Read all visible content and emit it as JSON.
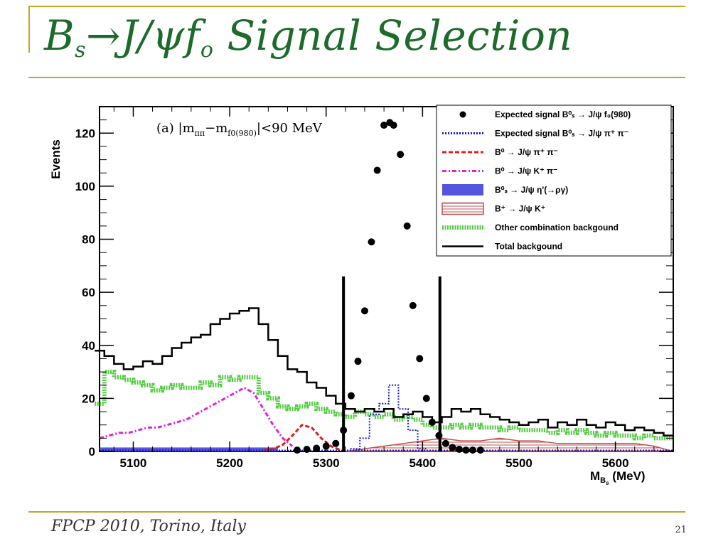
{
  "slide": {
    "title_parts": {
      "B": "B",
      "s": "s",
      "arrow": "→J/ψf",
      "o": "o",
      "rest": " Signal Selection"
    },
    "footer": "FPCP 2010, Torino, Italy",
    "page_number": "21"
  },
  "colors": {
    "title": "#1d6b2b",
    "rules": "#c9a227",
    "black": "#000000",
    "blue_dotted": "#1a1acc",
    "red_dashed": "#e0201e",
    "magenta": "#e020e0",
    "blue_fill": "#5555dd",
    "brown_hatch": "#c05050",
    "green": "#55cc44"
  },
  "chart_data": {
    "type": "histogram",
    "annotation": "(a) |m",
    "annotation_sub1": "ππ",
    "annotation_mid": "−m",
    "annotation_sub2": "f0(980)",
    "annotation_end": "|<90 MeV",
    "ylabel": "Events",
    "xlabel_main": "M",
    "xlabel_sub": "B",
    "xlabel_subsub": "s",
    "xlabel_unit": " (MeV)",
    "xlim": [
      5065,
      5660
    ],
    "ylim": [
      0,
      130
    ],
    "xticks": [
      5100,
      5200,
      5300,
      5400,
      5500,
      5600
    ],
    "xtick_labels": [
      "5100",
      "5200",
      "5300",
      "5400",
      "5500",
      "5600"
    ],
    "yticks": [
      0,
      20,
      40,
      60,
      80,
      100,
      120
    ],
    "ytick_labels": [
      "0",
      "20",
      "40",
      "60",
      "80",
      "100",
      "120"
    ],
    "signal_window": [
      5318,
      5418
    ],
    "legend": [
      {
        "text": "Expected signal B⁰ₛ → J/ψ f₀(980)",
        "style": "dot"
      },
      {
        "text": "Expected signal B⁰ₛ → J/ψ π⁺ π⁻",
        "style": "blue-dotted"
      },
      {
        "text": "B⁰ → J/ψ π⁺ π⁻",
        "style": "red-dashed"
      },
      {
        "text": "B⁰ → J/ψ K⁺ π⁻",
        "style": "magenta-dashdot"
      },
      {
        "text": "B⁰ₛ → J/ψ η'(→ργ)",
        "style": "blue-fill"
      },
      {
        "text": "B⁺ → J/ψ K⁺",
        "style": "brown-hatch"
      },
      {
        "text": "Other combination backgound",
        "style": "green-hatch"
      },
      {
        "text": "Total backgound",
        "style": "black-line"
      }
    ],
    "signal_points": {
      "x": [
        5270,
        5280,
        5290,
        5300,
        5310,
        5318,
        5326,
        5333,
        5340,
        5347,
        5353,
        5360,
        5366,
        5370,
        5377,
        5384,
        5390,
        5397,
        5404,
        5410,
        5417,
        5424,
        5431,
        5438,
        5445,
        5452,
        5460
      ],
      "y": [
        0.5,
        0.8,
        1.2,
        2,
        3,
        8,
        21,
        34,
        53,
        79,
        106,
        123,
        124,
        123,
        112,
        85,
        55,
        35,
        20,
        11,
        6,
        3,
        1.5,
        0.8,
        0.5,
        0.5,
        0.5
      ]
    },
    "total_background": {
      "x": [
        5065,
        5075,
        5085,
        5095,
        5105,
        5115,
        5125,
        5135,
        5145,
        5155,
        5165,
        5175,
        5185,
        5195,
        5205,
        5215,
        5225,
        5235,
        5245,
        5255,
        5265,
        5275,
        5285,
        5295,
        5305,
        5315,
        5325,
        5335,
        5345,
        5355,
        5365,
        5375,
        5385,
        5395,
        5405,
        5415,
        5425,
        5435,
        5445,
        5455,
        5465,
        5475,
        5485,
        5495,
        5505,
        5515,
        5525,
        5535,
        5545,
        5555,
        5565,
        5575,
        5585,
        5595,
        5605,
        5615,
        5625,
        5635,
        5645,
        5655
      ],
      "y": [
        38,
        36,
        33,
        31,
        32,
        34,
        33,
        36,
        39,
        41,
        43,
        44,
        48,
        50,
        52,
        53,
        54,
        48,
        42,
        36,
        31,
        30,
        26,
        24,
        21,
        18,
        16,
        15,
        16,
        15,
        16,
        13,
        14,
        15,
        13,
        11,
        13,
        16,
        15,
        16,
        14,
        13,
        12,
        11,
        10,
        11,
        12,
        9,
        11,
        10,
        12,
        10,
        9,
        11,
        10,
        8,
        9,
        8,
        7,
        6
      ]
    },
    "other_combination": {
      "x": [
        5065,
        5075,
        5085,
        5095,
        5105,
        5115,
        5125,
        5135,
        5145,
        5155,
        5165,
        5175,
        5185,
        5195,
        5205,
        5215,
        5225,
        5235,
        5245,
        5255,
        5265,
        5275,
        5285,
        5295,
        5305,
        5315,
        5325,
        5335,
        5345,
        5355,
        5365,
        5375,
        5385,
        5395,
        5405,
        5415,
        5425,
        5435,
        5445,
        5455,
        5465,
        5475,
        5485,
        5495,
        5505,
        5515,
        5525,
        5535,
        5545,
        5555,
        5565,
        5575,
        5585,
        5595,
        5605,
        5615,
        5625,
        5635,
        5645,
        5655
      ],
      "y": [
        18,
        30,
        28,
        27,
        26,
        25,
        23,
        24,
        25,
        24,
        24,
        26,
        25,
        28,
        27,
        28,
        28,
        22,
        20,
        17,
        16,
        17,
        18,
        16,
        15,
        14,
        13,
        15,
        14,
        13,
        14,
        12,
        13,
        12,
        10,
        9,
        9,
        10,
        9,
        10,
        9,
        9,
        8,
        9,
        8,
        8,
        8,
        7,
        8,
        7,
        8,
        7,
        6,
        7,
        6,
        6,
        5,
        6,
        5,
        5
      ]
    },
    "b0_kpi": {
      "x": [
        5065,
        5075,
        5085,
        5095,
        5105,
        5115,
        5125,
        5135,
        5145,
        5155,
        5165,
        5175,
        5185,
        5195,
        5205,
        5215,
        5225,
        5235,
        5245,
        5255,
        5265
      ],
      "y": [
        5,
        6,
        7,
        7,
        8,
        9,
        9,
        10,
        11,
        12,
        14,
        16,
        18,
        20,
        22,
        24,
        22,
        16,
        10,
        5,
        2
      ]
    },
    "b0_pipi": {
      "x": [
        5235,
        5245,
        5255,
        5265,
        5275,
        5285,
        5295,
        5305,
        5315
      ],
      "y": [
        0.5,
        1,
        2.5,
        6,
        10,
        9,
        5,
        2,
        0.5
      ]
    },
    "bs_pipi_signal": {
      "x": [
        5330,
        5340,
        5350,
        5360,
        5370,
        5380,
        5390,
        5400
      ],
      "y": [
        1,
        5,
        14,
        18,
        25,
        16,
        8,
        1
      ]
    },
    "bplus_jpsik": {
      "x": [
        5320,
        5340,
        5360,
        5380,
        5400,
        5420,
        5440,
        5460,
        5480,
        5500,
        5520,
        5540,
        5560,
        5580,
        5600,
        5620,
        5640,
        5660
      ],
      "y": [
        0,
        1,
        2,
        3,
        4,
        5,
        4,
        4,
        5,
        4,
        4,
        3,
        3,
        3,
        3,
        3,
        2,
        0
      ]
    },
    "bs_etaprime": {
      "x": [
        5065,
        5250
      ],
      "y": [
        1.5,
        1.5
      ]
    }
  }
}
